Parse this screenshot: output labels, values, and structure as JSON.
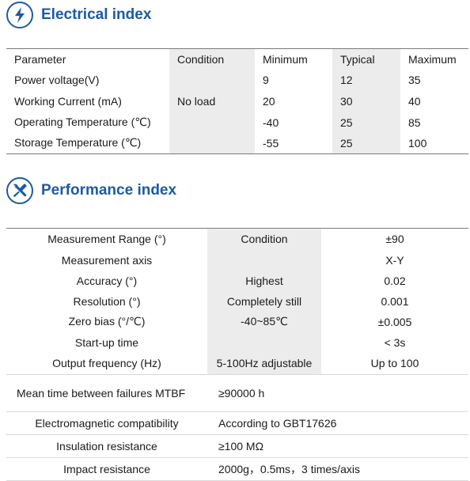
{
  "electrical": {
    "title": "Electrical index",
    "icon": "lightning-bolt-icon",
    "headers": [
      "Parameter",
      "Condition",
      "Minimum",
      "Typical",
      "Maximum"
    ],
    "rows": [
      [
        "Power voltage(V)",
        "",
        "9",
        "12",
        "35"
      ],
      [
        "Working Current (mA)",
        "No load",
        "20",
        "30",
        "40"
      ],
      [
        "Operating Temperature (℃)",
        "",
        "-40",
        "25",
        "85"
      ],
      [
        "Storage Temperature (℃)",
        "",
        "-55",
        "25",
        "100"
      ]
    ]
  },
  "performance": {
    "title": "Performance index",
    "icon": "wrench-screwdriver-icon",
    "rows": [
      [
        "Measurement Range (°)",
        "Condition",
        "±90"
      ],
      [
        "Measurement axis",
        "",
        "X-Y"
      ],
      [
        "Accuracy (°)",
        "Highest",
        "0.02"
      ],
      [
        "Resolution (°)",
        "Completely still",
        "0.001"
      ],
      [
        "Zero bias (°/℃)",
        "-40~85℃",
        "±0.005"
      ],
      [
        "Start-up time",
        "",
        "< 3s"
      ],
      [
        "Output frequency (Hz)",
        "5-100Hz adjustable",
        "Up to 100"
      ]
    ],
    "wide_rows": [
      [
        "Mean time between failures MTBF",
        "≥90000 h"
      ],
      [
        "Electromagnetic compatibility",
        "According to GBT17626"
      ],
      [
        "Insulation resistance",
        "≥100 MΩ"
      ],
      [
        "Impact resistance",
        "2000g，0.5ms，3 times/axis"
      ]
    ]
  }
}
